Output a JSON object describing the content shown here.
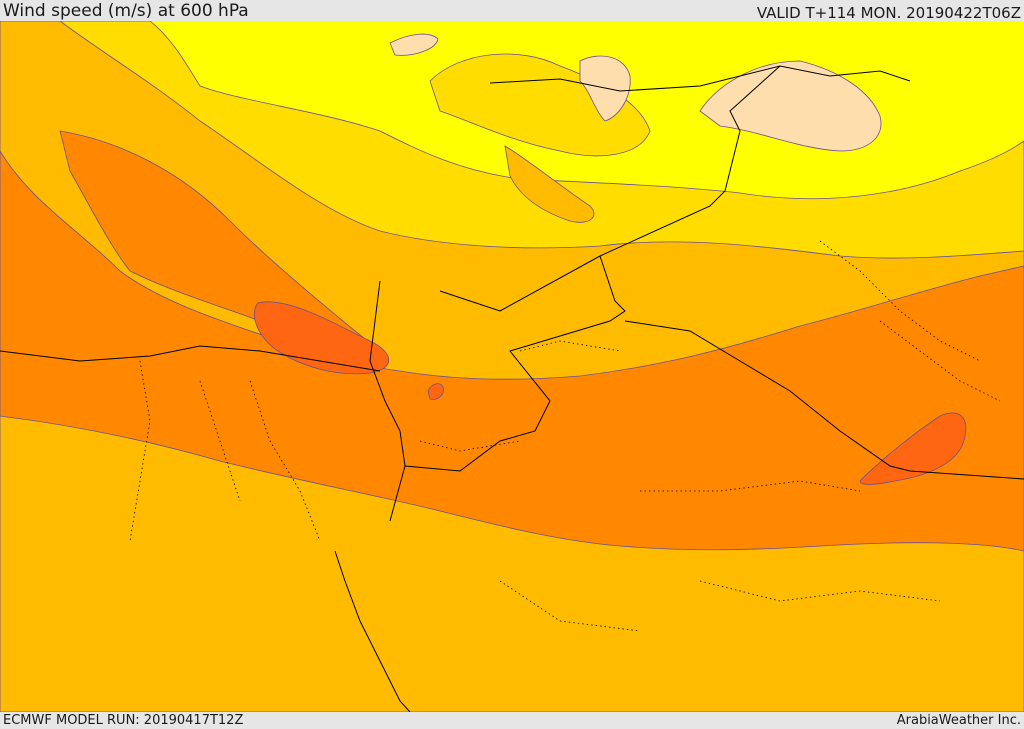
{
  "header": {
    "title": "Wind speed (m/s) at 600 hPa",
    "valid": "VALID T+114 MON. 20190422T06Z"
  },
  "footer": {
    "model_run": "ECMWF MODEL RUN: 20190417T12Z",
    "credit": "ArabiaWeather Inc."
  },
  "map": {
    "variable": "wind speed",
    "level": "600 hPa",
    "colors": {
      "band_lightest": "#ffdead",
      "band_1": "#ffff00",
      "band_2": "#ffdd00",
      "band_3": "#ffbb00",
      "band_4": "#ff8800",
      "band_5": "#ff6611",
      "contour": "#6b4f8f",
      "border": "#000000"
    }
  }
}
